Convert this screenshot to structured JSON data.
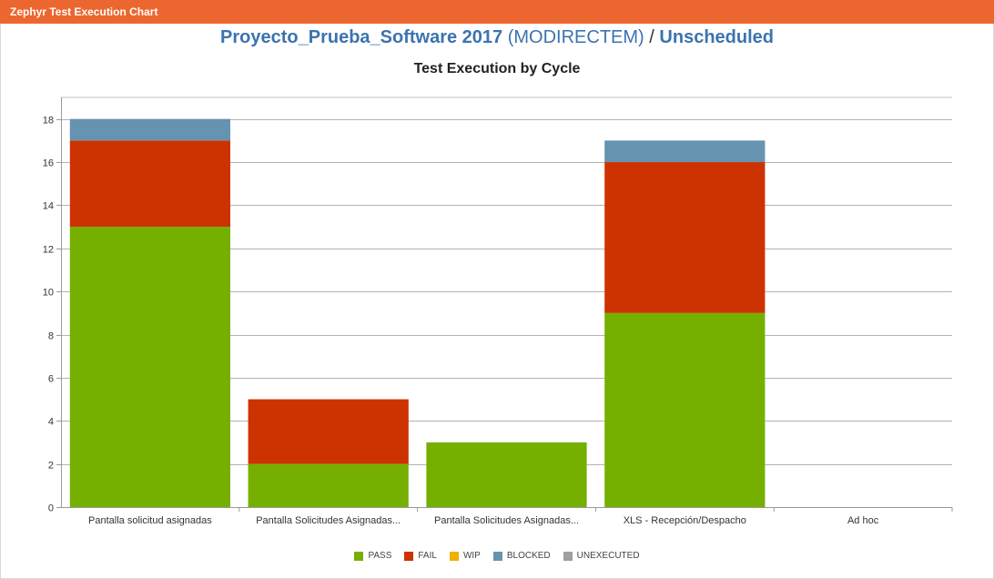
{
  "header": {
    "title": "Zephyr Test Execution Chart"
  },
  "heading": {
    "project": "Proyecto_Prueba_Software 2017",
    "project_key": "(MODIRECTEM)",
    "separator": "/",
    "version": "Unscheduled"
  },
  "chart_data": {
    "type": "bar",
    "stacked": true,
    "title": "Test Execution by Cycle",
    "xlabel": "",
    "ylabel": "",
    "ylim": [
      0,
      19
    ],
    "yticks": [
      0,
      2,
      4,
      6,
      8,
      10,
      12,
      14,
      16,
      18
    ],
    "grid": true,
    "legend_position": "bottom",
    "categories": [
      "Pantalla solicitud asignadas",
      "Pantalla Solicitudes Asignadas...",
      "Pantalla Solicitudes Asignadas...",
      "XLS - Recepción/Despacho",
      "Ad hoc"
    ],
    "series": [
      {
        "name": "PASS",
        "color": "#75b000",
        "values": [
          13,
          2,
          3,
          9,
          0
        ]
      },
      {
        "name": "FAIL",
        "color": "#cc3300",
        "values": [
          4,
          3,
          0,
          7,
          0
        ]
      },
      {
        "name": "WIP",
        "color": "#f2b000",
        "values": [
          0,
          0,
          0,
          0,
          0
        ]
      },
      {
        "name": "BLOCKED",
        "color": "#6693b0",
        "values": [
          1,
          0,
          0,
          1,
          0
        ]
      },
      {
        "name": "UNEXECUTED",
        "color": "#a0a0a0",
        "values": [
          0,
          0,
          0,
          0,
          0
        ]
      }
    ]
  }
}
